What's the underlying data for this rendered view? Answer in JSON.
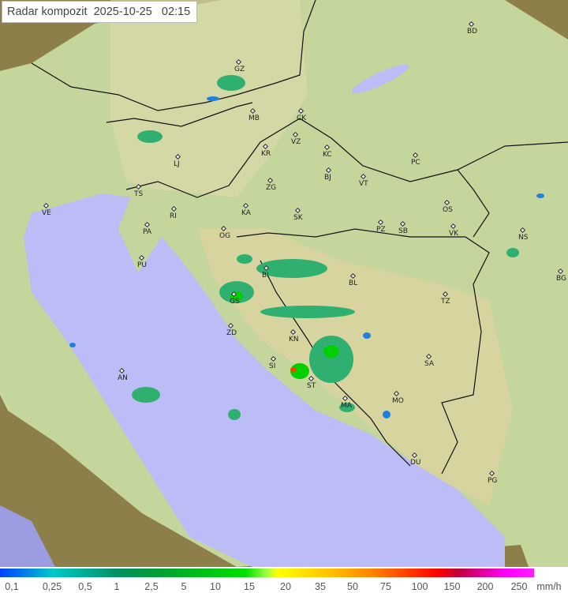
{
  "title": {
    "label": "Radar kompozit",
    "date": "2025-10-25",
    "time": "02:15"
  },
  "map": {
    "cities": [
      "GZ",
      "MB",
      "CK",
      "VZ",
      "KR",
      "KC",
      "LJ",
      "PC",
      "BD",
      "TS",
      "ZG",
      "BJ",
      "VT",
      "VE",
      "RI",
      "KA",
      "SK",
      "OS",
      "VK",
      "NS",
      "PA",
      "OG",
      "PZ",
      "SB",
      "PU",
      "GS",
      "BL",
      "BG",
      "TZ",
      "ZD",
      "KN",
      "SA",
      "SI",
      "AN",
      "ST",
      "MA",
      "MO",
      "DU",
      "PG",
      "BI"
    ],
    "colors": {
      "land": "#c9e0a8",
      "sea": "#bcbcf7",
      "outside": "#8a7c48",
      "border": "#111111"
    }
  },
  "legend": {
    "ticks": [
      "0,1",
      "0,25",
      "0,5",
      "1",
      "2,5",
      "5",
      "10",
      "15",
      "20",
      "35",
      "50",
      "75",
      "100",
      "150",
      "200",
      "250"
    ],
    "unit": "mm/h"
  }
}
